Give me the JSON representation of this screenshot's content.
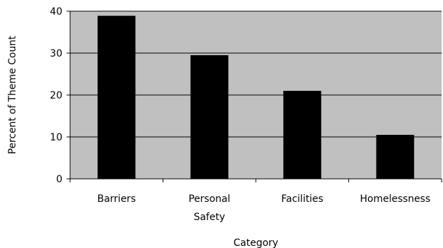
{
  "chart_data": {
    "type": "bar",
    "title": "",
    "xlabel": "Category",
    "ylabel": "Percent of Theme Count",
    "categories": [
      [
        "Barriers"
      ],
      [
        "Personal",
        "Safety"
      ],
      [
        "Facilities"
      ],
      [
        "Homelessness"
      ]
    ],
    "values": [
      38.9,
      29.5,
      21.0,
      10.5
    ],
    "ylim": [
      0,
      40
    ],
    "yticks": [
      0,
      10,
      20,
      30,
      40
    ],
    "grid": true,
    "colors": {
      "plot_background": "#c0c0c0",
      "bar": "#000000",
      "gridline": "#000000"
    }
  }
}
